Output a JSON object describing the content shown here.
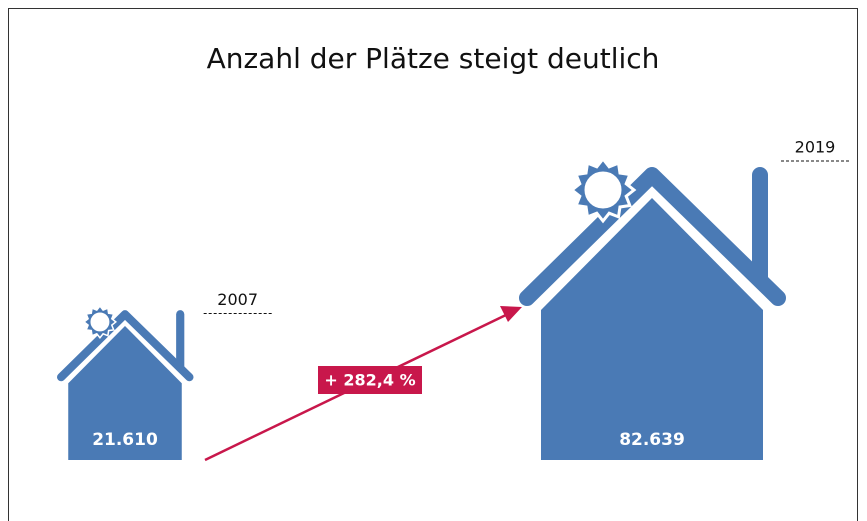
{
  "chart_data": {
    "type": "pictogram",
    "title": "Anzahl der Plätze steigt deutlich",
    "categories": [
      "2007",
      "2019"
    ],
    "values": [
      21610,
      82639
    ],
    "value_labels": [
      "21.610",
      "82.639"
    ],
    "color": "#4a7ab5",
    "annotation": "+ 282,4 %",
    "annotation_color": "#c8174b"
  }
}
